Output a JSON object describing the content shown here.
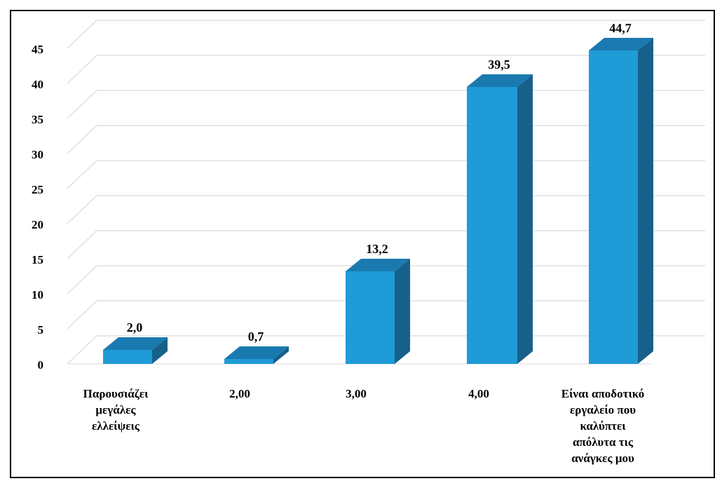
{
  "chart_data": {
    "type": "bar",
    "categories": [
      "Παρουσιάζει μεγάλες ελλείψεις",
      "2,00",
      "3,00",
      "4,00",
      "Είναι αποδοτικό εργαλείο που καλύπτει απόλυτα τις ανάγκες μου"
    ],
    "category_lines": [
      [
        "Παρουσιάζει",
        "μεγάλες",
        "ελλείψεις"
      ],
      [
        "2,00"
      ],
      [
        "3,00"
      ],
      [
        "4,00"
      ],
      [
        "Είναι αποδοτικό",
        "εργαλείο που",
        "καλύπτει",
        "απόλυτα τις",
        "ανάγκες μου"
      ]
    ],
    "values": [
      2.0,
      0.7,
      13.2,
      39.5,
      44.7
    ],
    "value_labels": [
      "2,0",
      "0,7",
      "13,2",
      "39,5",
      "44,7"
    ],
    "title": "",
    "xlabel": "",
    "ylabel": "",
    "ylim": [
      0,
      45
    ],
    "yticks": [
      0,
      5,
      10,
      15,
      20,
      25,
      30,
      35,
      40,
      45
    ],
    "grid": true,
    "style": "3d-column",
    "colors": {
      "front": "#1f9bd7",
      "side": "#17608a",
      "top": "#1a7ab0",
      "grid": "#d9d9d9"
    }
  }
}
